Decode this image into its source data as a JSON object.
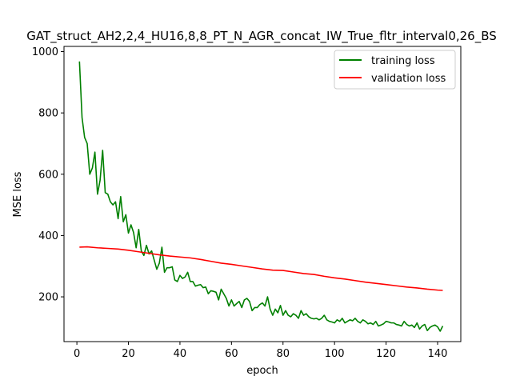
{
  "chart_data": {
    "type": "line",
    "title": "GAT_struct_AH2,2,4_HU16,8,8_PT_N_AGR_concat_IW_True_fltr_interval0,26_BS",
    "xlabel": "epoch",
    "ylabel": "MSE loss",
    "xlim": [
      -5,
      149
    ],
    "ylim": [
      54,
      1017
    ],
    "xticks": [
      0,
      20,
      40,
      60,
      80,
      100,
      120,
      140
    ],
    "yticks": [
      200,
      400,
      600,
      800,
      1000
    ],
    "legend_position": "top-right",
    "series": [
      {
        "name": "training loss",
        "color": "#008000",
        "x": [
          1,
          2,
          3,
          4,
          5,
          6,
          7,
          8,
          9,
          10,
          11,
          12,
          13,
          14,
          15,
          16,
          17,
          18,
          19,
          20,
          21,
          22,
          23,
          24,
          25,
          26,
          27,
          28,
          29,
          30,
          31,
          32,
          33,
          34,
          35,
          36,
          37,
          38,
          39,
          40,
          41,
          42,
          43,
          44,
          45,
          46,
          47,
          48,
          49,
          50,
          51,
          52,
          53,
          54,
          55,
          56,
          57,
          58,
          59,
          60,
          61,
          62,
          63,
          64,
          65,
          66,
          67,
          68,
          69,
          70,
          71,
          72,
          73,
          74,
          75,
          76,
          77,
          78,
          79,
          80,
          81,
          82,
          83,
          84,
          85,
          86,
          87,
          88,
          89,
          90,
          91,
          92,
          93,
          94,
          95,
          96,
          97,
          98,
          99,
          100,
          101,
          102,
          103,
          104,
          105,
          106,
          107,
          108,
          109,
          110,
          111,
          112,
          113,
          114,
          115,
          116,
          117,
          118,
          119,
          120,
          121,
          122,
          123,
          124,
          125,
          126,
          127,
          128,
          129,
          130,
          131,
          132,
          133,
          134,
          135,
          136,
          137,
          138,
          139,
          140,
          141,
          142
        ],
        "values": [
          968,
          785,
          720,
          700,
          600,
          620,
          672,
          535,
          580,
          678,
          540,
          535,
          510,
          500,
          510,
          455,
          527,
          445,
          468,
          408,
          435,
          410,
          360,
          420,
          350,
          335,
          368,
          340,
          350,
          320,
          290,
          310,
          362,
          280,
          295,
          295,
          298,
          255,
          250,
          270,
          260,
          265,
          280,
          250,
          250,
          235,
          238,
          240,
          230,
          232,
          210,
          220,
          218,
          215,
          190,
          225,
          210,
          195,
          170,
          190,
          170,
          178,
          185,
          165,
          190,
          195,
          185,
          155,
          165,
          165,
          175,
          180,
          170,
          200,
          160,
          140,
          160,
          148,
          172,
          140,
          155,
          140,
          135,
          145,
          140,
          130,
          155,
          140,
          145,
          135,
          130,
          128,
          130,
          125,
          130,
          140,
          125,
          120,
          118,
          115,
          125,
          120,
          130,
          115,
          120,
          125,
          122,
          130,
          120,
          115,
          125,
          120,
          112,
          115,
          110,
          120,
          105,
          108,
          112,
          120,
          118,
          115,
          115,
          110,
          108,
          105,
          120,
          110,
          105,
          108,
          100,
          115,
          95,
          105,
          110,
          90,
          100,
          105,
          108,
          102,
          88,
          105
        ],
        "values_note": "digitized"
      },
      {
        "name": "validation loss",
        "color": "#ff0000",
        "x": [
          1,
          4,
          8,
          12,
          16,
          20,
          24,
          28,
          32,
          36,
          40,
          44,
          48,
          52,
          56,
          60,
          64,
          68,
          72,
          76,
          80,
          84,
          88,
          92,
          96,
          100,
          104,
          108,
          112,
          116,
          120,
          124,
          128,
          132,
          136,
          140,
          142
        ],
        "values": [
          362,
          363,
          360,
          358,
          356,
          352,
          347,
          342,
          337,
          333,
          330,
          327,
          322,
          316,
          310,
          306,
          301,
          296,
          291,
          287,
          286,
          281,
          276,
          273,
          267,
          262,
          258,
          253,
          248,
          244,
          240,
          236,
          232,
          229,
          225,
          222,
          221
        ]
      }
    ]
  }
}
